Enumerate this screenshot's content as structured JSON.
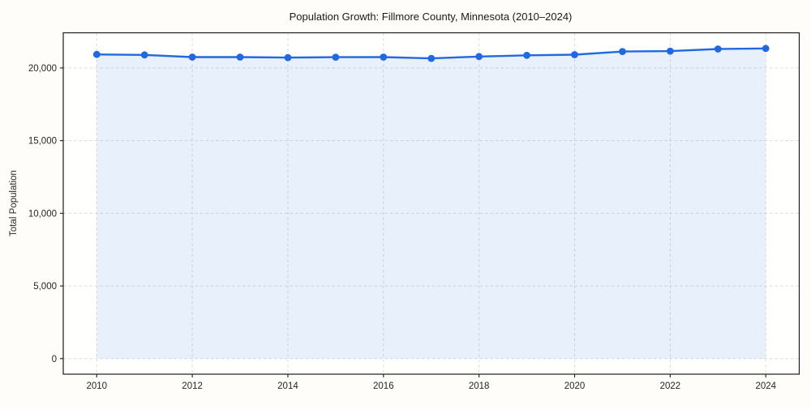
{
  "chart_data": {
    "type": "line",
    "title": "Population Growth: Fillmore County, Minnesota (2010–2024)",
    "xlabel": "",
    "ylabel": "Total Population",
    "x": [
      2010,
      2011,
      2012,
      2013,
      2014,
      2015,
      2016,
      2017,
      2018,
      2019,
      2020,
      2021,
      2022,
      2023,
      2024
    ],
    "series": [
      {
        "name": "Total Population",
        "values": [
          20930,
          20900,
          20750,
          20748,
          20713,
          20745,
          20750,
          20660,
          20785,
          20870,
          20915,
          21130,
          21160,
          21305,
          21345
        ]
      }
    ],
    "xticks": [
      2010,
      2012,
      2014,
      2016,
      2018,
      2020,
      2022,
      2024
    ],
    "yticks": [
      0,
      5000,
      10000,
      15000,
      20000
    ],
    "xlim": [
      2009.3,
      2024.7
    ],
    "ylim": [
      -1070,
      22420
    ],
    "grid": true,
    "grid_style": "dashed",
    "legend_position": "none",
    "marker": "circle",
    "colors": {
      "line": "#2169e0",
      "marker": "#2169e0",
      "fill": "#2169e0",
      "fill_opacity": 0.1,
      "grid": "#d8d8d8",
      "spine": "#1c1c1c",
      "text": "#262626",
      "title_text": "#1a1a1a",
      "figure_bg": "#fefdf9",
      "plot_bg": "#fffffe"
    }
  }
}
